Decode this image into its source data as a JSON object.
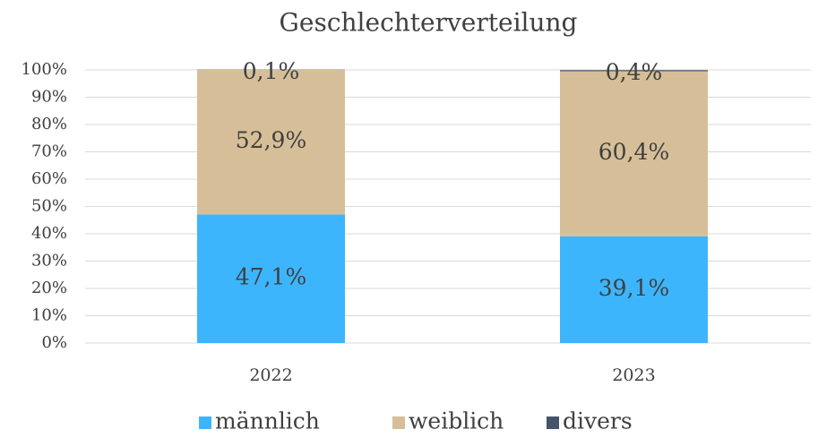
{
  "chart_data": {
    "type": "stacked_bar",
    "title": "Geschlechterverteilung",
    "categories": [
      "2022",
      "2023"
    ],
    "series": [
      {
        "name": "männlich",
        "color": "#3db5fd",
        "values": [
          47.1,
          39.1
        ],
        "value_labels": [
          "47,1%",
          "39,1%"
        ]
      },
      {
        "name": "weiblich",
        "color": "#d6bf98",
        "values": [
          52.9,
          60.4
        ],
        "value_labels": [
          "52,9%",
          "60,4%"
        ]
      },
      {
        "name": "divers",
        "color": "#44546a",
        "values": [
          0.1,
          0.4
        ],
        "value_labels": [
          "0,1%",
          "0,4%"
        ]
      }
    ],
    "ylim": [
      0,
      100
    ],
    "yticks": [
      {
        "value": 0,
        "label": "0%"
      },
      {
        "value": 10,
        "label": "10%"
      },
      {
        "value": 20,
        "label": "20%"
      },
      {
        "value": 30,
        "label": "30%"
      },
      {
        "value": 40,
        "label": "40%"
      },
      {
        "value": 50,
        "label": "50%"
      },
      {
        "value": 60,
        "label": "60%"
      },
      {
        "value": 70,
        "label": "70%"
      },
      {
        "value": 80,
        "label": "80%"
      },
      {
        "value": 90,
        "label": "90%"
      },
      {
        "value": 100,
        "label": "100%"
      }
    ],
    "grid": true,
    "legend": "bottom"
  }
}
